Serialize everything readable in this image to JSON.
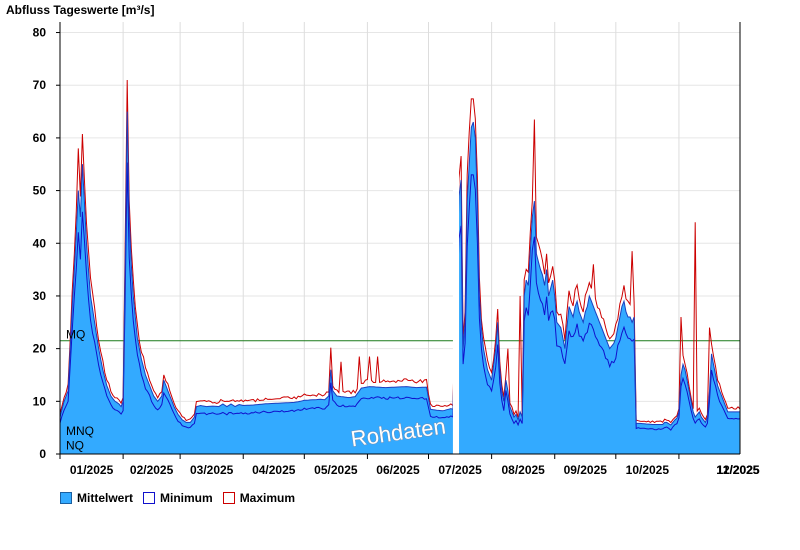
{
  "chart_data": {
    "type": "area",
    "title": "Abfluss Tageswerte [m³/s]",
    "ylim": [
      0,
      82
    ],
    "yticks": [
      0,
      10,
      20,
      30,
      40,
      50,
      60,
      70,
      80
    ],
    "grid": true,
    "xlabels": [
      "01/2025",
      "02/2025",
      "03/2025",
      "04/2025",
      "05/2025",
      "06/2025",
      "07/2025",
      "08/2025",
      "09/2025",
      "10/2025",
      "11/2025",
      "12/2025"
    ],
    "watermark": "Rohdaten",
    "gap_interval_days": [
      193,
      196
    ],
    "reference_lines": [
      {
        "name": "MQ",
        "value": 21.5,
        "color": "#1a7a1a"
      },
      {
        "name": "MNQ",
        "value": 3.2,
        "color": "#333333"
      },
      {
        "name": "NQ",
        "value": 0.5,
        "color": "#333333"
      }
    ],
    "series": [
      {
        "name": "Mittelwert",
        "color": "#33aaff"
      },
      {
        "name": "Minimum",
        "color": "#1111cc"
      },
      {
        "name": "Maximum",
        "color": "#cc0000"
      }
    ],
    "mean_keypoints": [
      [
        0,
        7
      ],
      [
        2,
        10
      ],
      [
        4,
        12
      ],
      [
        6,
        28
      ],
      [
        8,
        42
      ],
      [
        9,
        50
      ],
      [
        10,
        45
      ],
      [
        11,
        55
      ],
      [
        12,
        48
      ],
      [
        13,
        40
      ],
      [
        15,
        30
      ],
      [
        17,
        25
      ],
      [
        19,
        20
      ],
      [
        21,
        16
      ],
      [
        23,
        13
      ],
      [
        25,
        11
      ],
      [
        27,
        10
      ],
      [
        29,
        9.5
      ],
      [
        30,
        9
      ],
      [
        31,
        10
      ],
      [
        32,
        35
      ],
      [
        33,
        65
      ],
      [
        34,
        45
      ],
      [
        35,
        36
      ],
      [
        36,
        30
      ],
      [
        38,
        22
      ],
      [
        40,
        18
      ],
      [
        42,
        15
      ],
      [
        44,
        13
      ],
      [
        46,
        11
      ],
      [
        48,
        10
      ],
      [
        50,
        11
      ],
      [
        51,
        14
      ],
      [
        52,
        13
      ],
      [
        54,
        11
      ],
      [
        56,
        9
      ],
      [
        58,
        7.5
      ],
      [
        60,
        6.5
      ],
      [
        62,
        6
      ],
      [
        64,
        6
      ],
      [
        66,
        7
      ],
      [
        67,
        9
      ],
      [
        69,
        9.2
      ],
      [
        72,
        9
      ],
      [
        75,
        9.1
      ],
      [
        78,
        9
      ],
      [
        80,
        9.5
      ],
      [
        82,
        9
      ],
      [
        84,
        9.5
      ],
      [
        86,
        9
      ],
      [
        88,
        9.4
      ],
      [
        90,
        9.2
      ],
      [
        95,
        9.3
      ],
      [
        100,
        9.5
      ],
      [
        105,
        9.6
      ],
      [
        110,
        9.7
      ],
      [
        115,
        9.8
      ],
      [
        118,
        10
      ],
      [
        120,
        10.2
      ],
      [
        125,
        10.3
      ],
      [
        128,
        10.4
      ],
      [
        130,
        10.3
      ],
      [
        132,
        11
      ],
      [
        133,
        16
      ],
      [
        134,
        12
      ],
      [
        136,
        11
      ],
      [
        140,
        10.8
      ],
      [
        142,
        10.7
      ],
      [
        145,
        10.9
      ],
      [
        148,
        12.5
      ],
      [
        152,
        12.8
      ],
      [
        156,
        12.7
      ],
      [
        160,
        12.6
      ],
      [
        165,
        12.7
      ],
      [
        170,
        12.8
      ],
      [
        175,
        12.6
      ],
      [
        180,
        12.7
      ],
      [
        182,
        8.5
      ],
      [
        185,
        8.3
      ],
      [
        188,
        8.2
      ],
      [
        190,
        8.4
      ],
      [
        192,
        8.6
      ],
      [
        193,
        8.5
      ],
      [
        196,
        49
      ],
      [
        197,
        52
      ],
      [
        198,
        20
      ],
      [
        199,
        25
      ],
      [
        200,
        48
      ],
      [
        201,
        55
      ],
      [
        202,
        62
      ],
      [
        203,
        63
      ],
      [
        204,
        60
      ],
      [
        205,
        48
      ],
      [
        206,
        30
      ],
      [
        207,
        24
      ],
      [
        208,
        20
      ],
      [
        209,
        18
      ],
      [
        210,
        16
      ],
      [
        212,
        14
      ],
      [
        213,
        17
      ],
      [
        214,
        20
      ],
      [
        215,
        25
      ],
      [
        216,
        16
      ],
      [
        217,
        12
      ],
      [
        218,
        10
      ],
      [
        219,
        14
      ],
      [
        220,
        12
      ],
      [
        221,
        9
      ],
      [
        222,
        8
      ],
      [
        223,
        7
      ],
      [
        224,
        7.5
      ],
      [
        225,
        6.5
      ],
      [
        226,
        8
      ],
      [
        227,
        7
      ],
      [
        228,
        30
      ],
      [
        229,
        33
      ],
      [
        230,
        32
      ],
      [
        232,
        45
      ],
      [
        233,
        48
      ],
      [
        234,
        38
      ],
      [
        236,
        35
      ],
      [
        237,
        34
      ],
      [
        238,
        32
      ],
      [
        239,
        35
      ],
      [
        240,
        30
      ],
      [
        242,
        33
      ],
      [
        243,
        30
      ],
      [
        244,
        25
      ],
      [
        246,
        24
      ],
      [
        247,
        22
      ],
      [
        248,
        20
      ],
      [
        249,
        24
      ],
      [
        250,
        28
      ],
      [
        251,
        27
      ],
      [
        252,
        26
      ],
      [
        253,
        28
      ],
      [
        254,
        29
      ],
      [
        255,
        27
      ],
      [
        256,
        26
      ],
      [
        257,
        25
      ],
      [
        258,
        27
      ],
      [
        259,
        28
      ],
      [
        260,
        30
      ],
      [
        261,
        29
      ],
      [
        262,
        28
      ],
      [
        263,
        27
      ],
      [
        264,
        26
      ],
      [
        265,
        25
      ],
      [
        266,
        24
      ],
      [
        267,
        23
      ],
      [
        268,
        22
      ],
      [
        269,
        21
      ],
      [
        270,
        20
      ],
      [
        271,
        20.5
      ],
      [
        272,
        21
      ],
      [
        273,
        22
      ],
      [
        274,
        24
      ],
      [
        275,
        26
      ],
      [
        276,
        28
      ],
      [
        277,
        29
      ],
      [
        278,
        27
      ],
      [
        279,
        26
      ],
      [
        280,
        26
      ],
      [
        281,
        25
      ],
      [
        282,
        26
      ],
      [
        283,
        5.8
      ],
      [
        285,
        5.8
      ],
      [
        288,
        5.7
      ],
      [
        291,
        5.6
      ],
      [
        294,
        5.6
      ],
      [
        296,
        5.6
      ],
      [
        297,
        6
      ],
      [
        298,
        6
      ],
      [
        300,
        5.5
      ],
      [
        302,
        6.5
      ],
      [
        303,
        6.8
      ],
      [
        304,
        8
      ],
      [
        305,
        15
      ],
      [
        306,
        17
      ],
      [
        307,
        16
      ],
      [
        308,
        14
      ],
      [
        309,
        12
      ],
      [
        310,
        10
      ],
      [
        311,
        8
      ],
      [
        312,
        7
      ],
      [
        313,
        7.5
      ],
      [
        314,
        8
      ],
      [
        315,
        7
      ],
      [
        316,
        6.5
      ],
      [
        317,
        6
      ],
      [
        318,
        7
      ],
      [
        319,
        12
      ],
      [
        320,
        19
      ],
      [
        321,
        17
      ],
      [
        322,
        15
      ],
      [
        323,
        13
      ],
      [
        324,
        12
      ],
      [
        325,
        11
      ],
      [
        326,
        10
      ],
      [
        327,
        9
      ],
      [
        328,
        8
      ]
    ],
    "max_spikes": [
      [
        9,
        58
      ],
      [
        11,
        60
      ],
      [
        33,
        71
      ],
      [
        133,
        20.2
      ],
      [
        138,
        17.5
      ],
      [
        147,
        18.5
      ],
      [
        152,
        18.5
      ],
      [
        156,
        18.5
      ],
      [
        171,
        11.5
      ],
      [
        195,
        42
      ],
      [
        196,
        50
      ],
      [
        197,
        52
      ],
      [
        203,
        66
      ],
      [
        220,
        20
      ],
      [
        226,
        30
      ],
      [
        233,
        63.5
      ],
      [
        239,
        38
      ],
      [
        250,
        31
      ],
      [
        262,
        36
      ],
      [
        281,
        38.5
      ],
      [
        305,
        26
      ],
      [
        312,
        44
      ],
      [
        319,
        24
      ]
    ]
  },
  "legend": {
    "mean_label": "Mittelwert",
    "min_label": "Minimum",
    "max_label": "Maximum"
  }
}
